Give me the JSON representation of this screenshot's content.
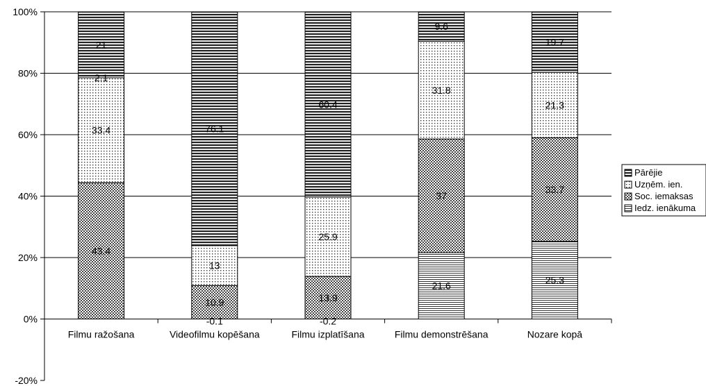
{
  "chart_data": {
    "type": "bar",
    "stacked": "percent",
    "categories": [
      "Filmu ražošana",
      "Videofilmu kopēšana",
      "Filmu izplatīšana",
      "Filmu demonstrēšana",
      "Nozare kopā"
    ],
    "series": [
      {
        "name": "Iedz. ienākuma",
        "pattern": "hlines-dense",
        "values": [
          0,
          0,
          0,
          21.6,
          25.3
        ]
      },
      {
        "name": "Soc. iemaksas",
        "pattern": "checker",
        "values": [
          43.4,
          10.9,
          13.9,
          37,
          33.7
        ]
      },
      {
        "name": "Uzņēm. ien.",
        "pattern": "dots",
        "values": [
          33.4,
          13,
          25.9,
          31.8,
          21.3
        ]
      },
      {
        "name": "Pārējie",
        "pattern": "hlines-heavy",
        "values": [
          21,
          76.1,
          60.4,
          9.6,
          19.7
        ]
      }
    ],
    "extra_labels": [
      {
        "category": "Filmu ražošana",
        "value": 2.1
      },
      {
        "category": "Videofilmu kopēšana",
        "value": -0.1
      },
      {
        "category": "Filmu izplatīšana",
        "value": -0.2
      }
    ],
    "y_ticks": [
      "-20%",
      "0%",
      "20%",
      "40%",
      "60%",
      "80%",
      "100%"
    ],
    "ylim": [
      -20,
      100
    ],
    "grid": true,
    "legend_position": "right",
    "legend_order": [
      "Pārējie",
      "Uzņēm. ien.",
      "Soc. iemaksas",
      "Iedz. ienākuma"
    ]
  }
}
